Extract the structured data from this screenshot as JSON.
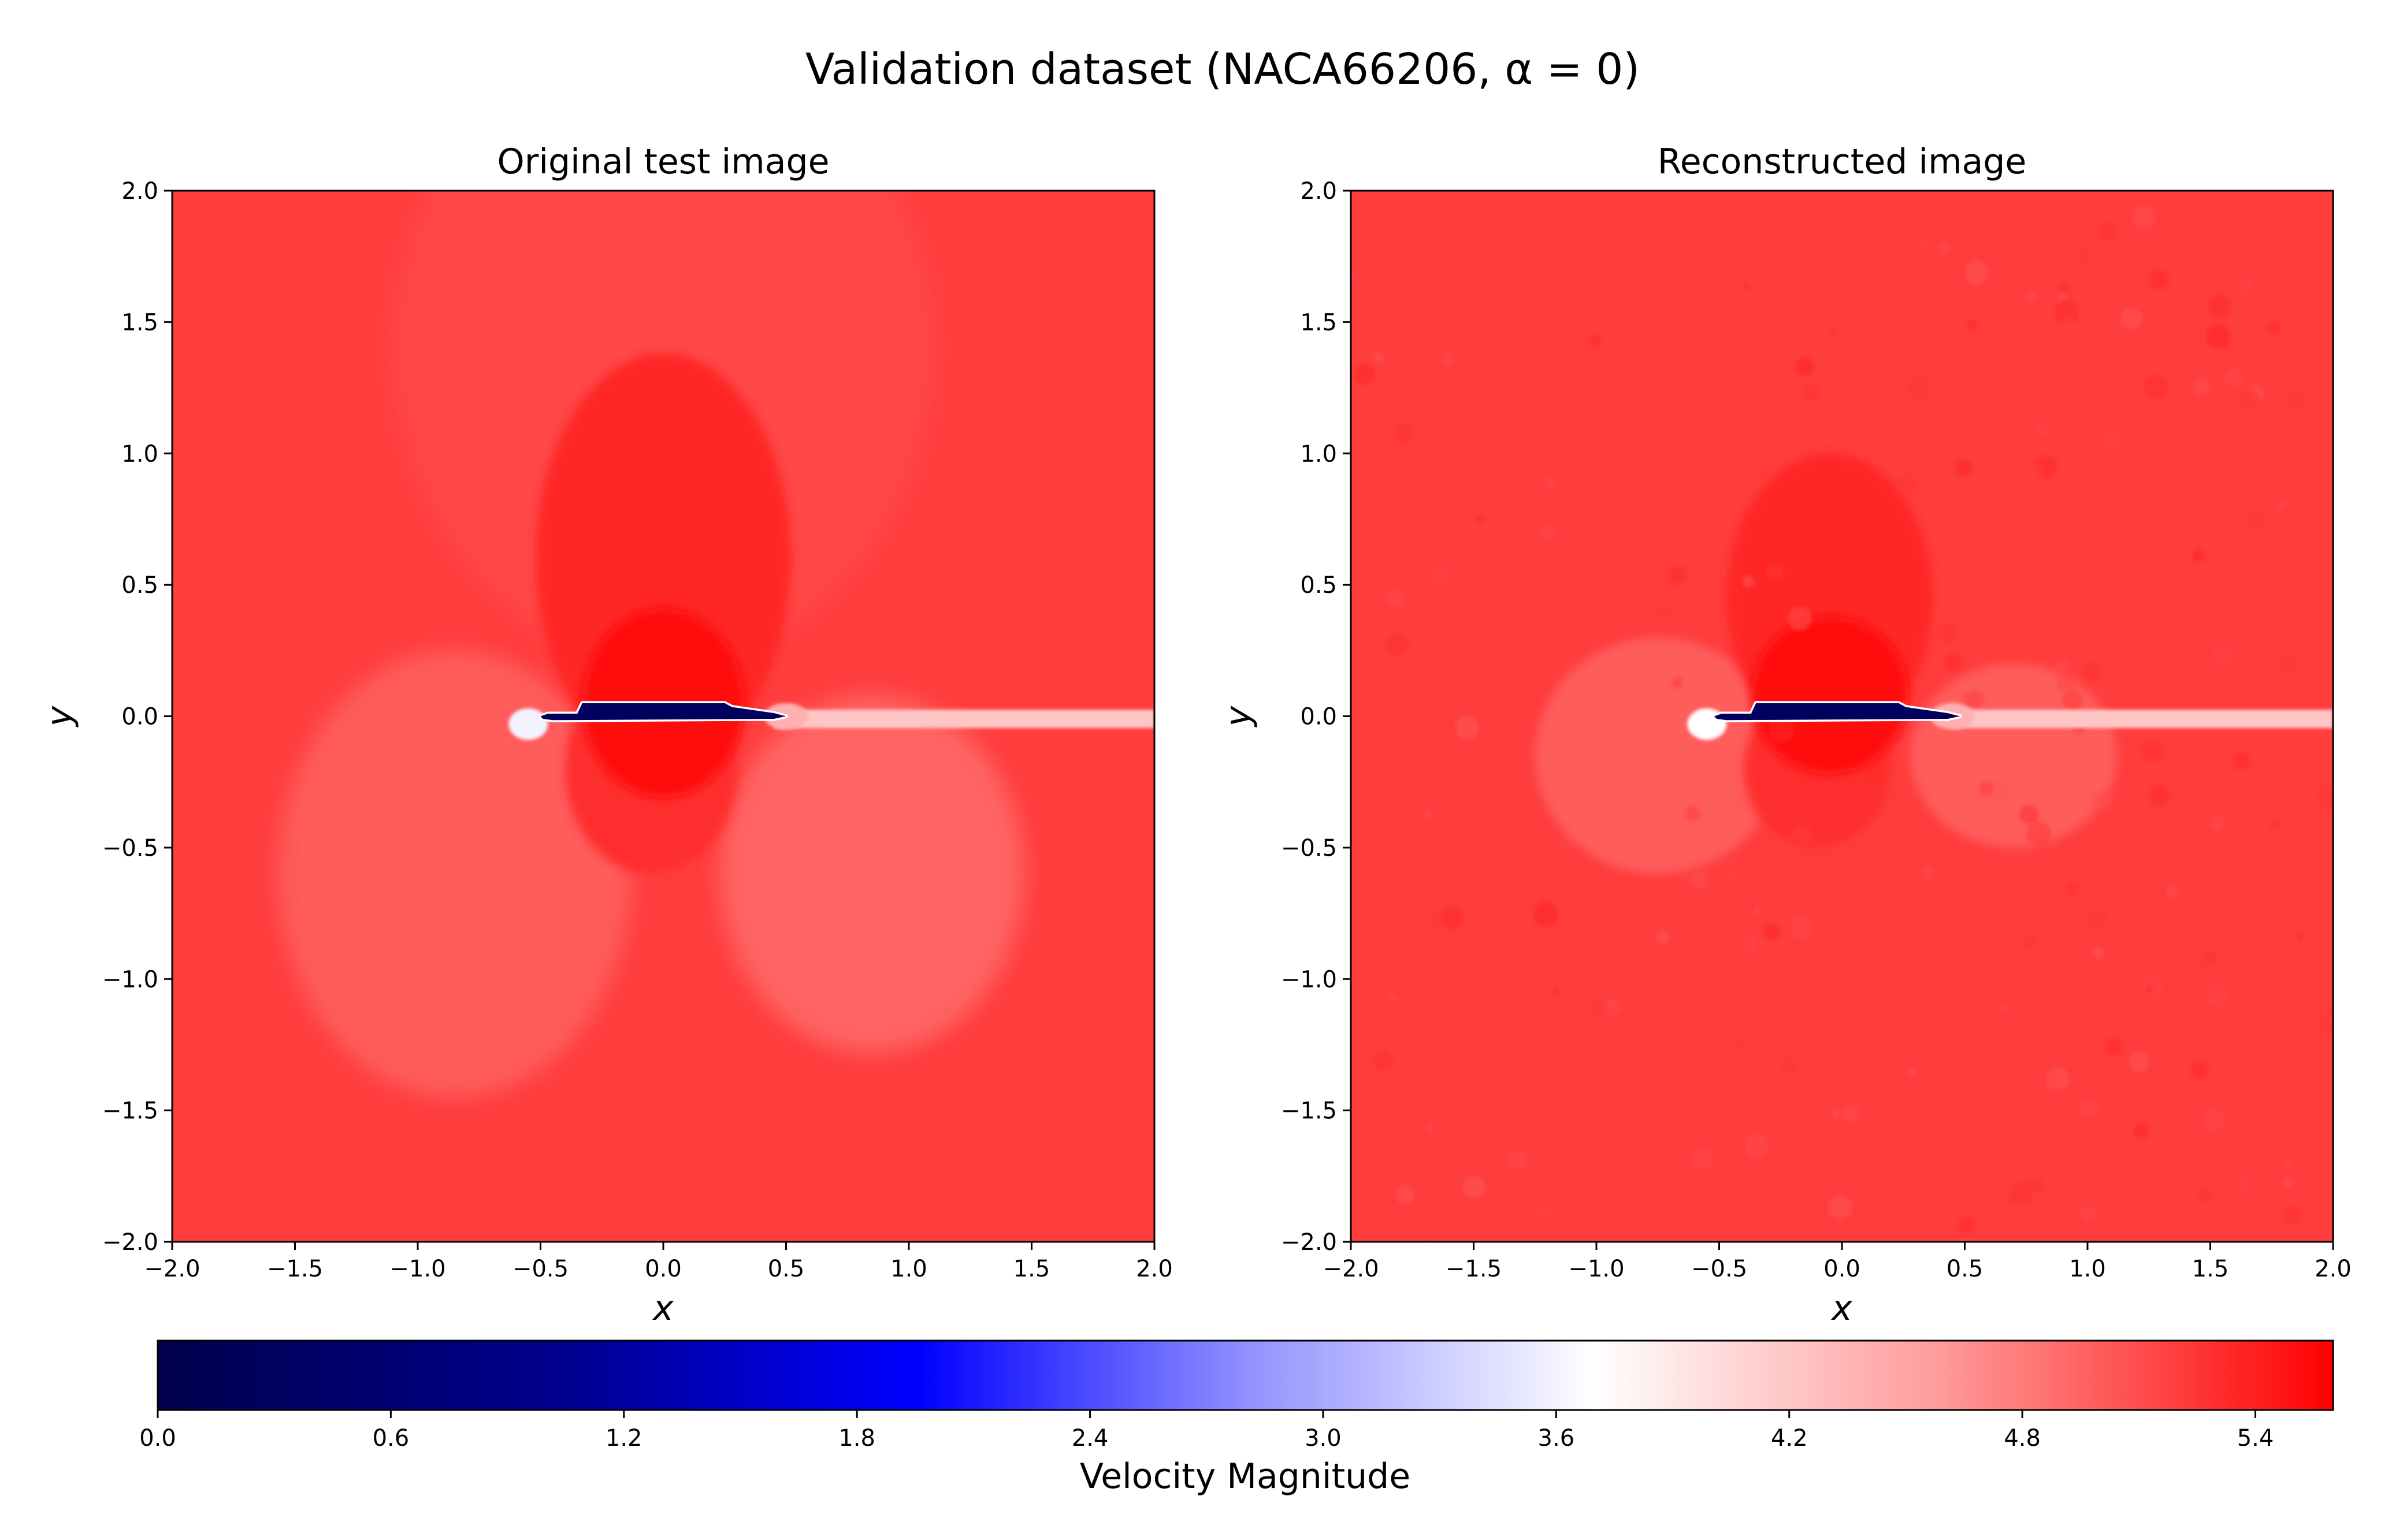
{
  "figure": {
    "title": "Validation dataset (NACA66206, α = 0)"
  },
  "chart_data": [
    {
      "type": "heatmap",
      "title": "Original test image",
      "xlabel": "x",
      "ylabel": "y",
      "xlim": [
        -2.0,
        2.0
      ],
      "ylim": [
        -2.0,
        2.0
      ],
      "xticks": [
        "−2.0",
        "−1.5",
        "−1.0",
        "−0.5",
        "0.0",
        "0.5",
        "1.0",
        "1.5",
        "2.0"
      ],
      "yticks": [
        "2.0",
        "1.5",
        "1.0",
        "0.5",
        "0.0",
        "−0.5",
        "−1.0",
        "−1.5",
        "−2.0"
      ],
      "grid": false,
      "field": "velocity magnitude",
      "freestream_value": 5.2,
      "regions": [
        {
          "name": "upper-suction-peak",
          "x": 0.0,
          "y": 0.05,
          "value": 5.5
        },
        {
          "name": "upper-acceleration",
          "x": 0.0,
          "y": 0.6,
          "value": 5.35
        },
        {
          "name": "lower-surface",
          "x": -0.05,
          "y": -0.2,
          "value": 5.3
        },
        {
          "name": "leading-edge-stagnation",
          "x": -0.55,
          "y": -0.03,
          "value": 3.6
        },
        {
          "name": "trailing-edge",
          "x": 0.5,
          "y": 0.0,
          "value": 4.4
        },
        {
          "name": "lower-left-lobe",
          "x": -0.85,
          "y": -0.6,
          "value": 5.0
        },
        {
          "name": "lower-right-lobe",
          "x": 0.85,
          "y": -0.6,
          "value": 4.95
        },
        {
          "name": "wake",
          "x": 1.3,
          "y": -0.01,
          "value": 4.2
        },
        {
          "name": "airfoil-interior",
          "x": 0.0,
          "y": 0.02,
          "value": 0.3
        }
      ],
      "airfoil": {
        "name": "NACA66206",
        "chord_x": [
          -0.5,
          0.5
        ],
        "angle_of_attack": 0
      }
    },
    {
      "type": "heatmap",
      "title": "Reconstructed image",
      "xlabel": "x",
      "ylabel": "y",
      "xlim": [
        -2.0,
        2.0
      ],
      "ylim": [
        -2.0,
        2.0
      ],
      "xticks": [
        "−2.0",
        "−1.5",
        "−1.0",
        "−0.5",
        "0.0",
        "0.5",
        "1.0",
        "1.5",
        "2.0"
      ],
      "yticks": [
        "2.0",
        "1.5",
        "1.0",
        "0.5",
        "0.0",
        "−0.5",
        "−1.0",
        "−1.5",
        "−2.0"
      ],
      "grid": false,
      "field": "velocity magnitude",
      "freestream_value": 5.2,
      "regions": [
        {
          "name": "upper-suction-peak",
          "x": -0.05,
          "y": 0.08,
          "value": 5.5
        },
        {
          "name": "upper-acceleration",
          "x": -0.05,
          "y": 0.45,
          "value": 5.35
        },
        {
          "name": "lower-surface",
          "x": -0.1,
          "y": -0.2,
          "value": 5.3
        },
        {
          "name": "leading-edge-stagnation",
          "x": -0.55,
          "y": -0.03,
          "value": 3.7
        },
        {
          "name": "trailing-edge",
          "x": 0.45,
          "y": 0.0,
          "value": 4.4
        },
        {
          "name": "lower-left-lobe",
          "x": -0.75,
          "y": -0.15,
          "value": 5.0
        },
        {
          "name": "lower-right-lobe",
          "x": 0.7,
          "y": -0.15,
          "value": 5.0
        },
        {
          "name": "wake",
          "x": 1.3,
          "y": -0.01,
          "value": 4.2
        },
        {
          "name": "airfoil-interior",
          "x": -0.05,
          "y": 0.02,
          "value": 0.3
        }
      ],
      "airfoil": {
        "name": "NACA66206",
        "chord_x": [
          -0.5,
          0.5
        ],
        "angle_of_attack": 0
      }
    }
  ],
  "colorbar": {
    "label": "Velocity Magnitude",
    "vmin": 0.0,
    "vmax": 5.6,
    "ticks": [
      0.0,
      0.6,
      1.2,
      1.8,
      2.4,
      3.0,
      3.6,
      4.2,
      4.8,
      5.4
    ],
    "tick_labels": [
      "0.0",
      "0.6",
      "1.2",
      "1.8",
      "2.4",
      "3.0",
      "3.6",
      "4.2",
      "4.8",
      "5.4"
    ],
    "colormap": "seismic",
    "colors": {
      "low": "#00004c",
      "mid_low": "#0000ff",
      "mid": "#ffffff",
      "high": "#ff0000"
    }
  }
}
